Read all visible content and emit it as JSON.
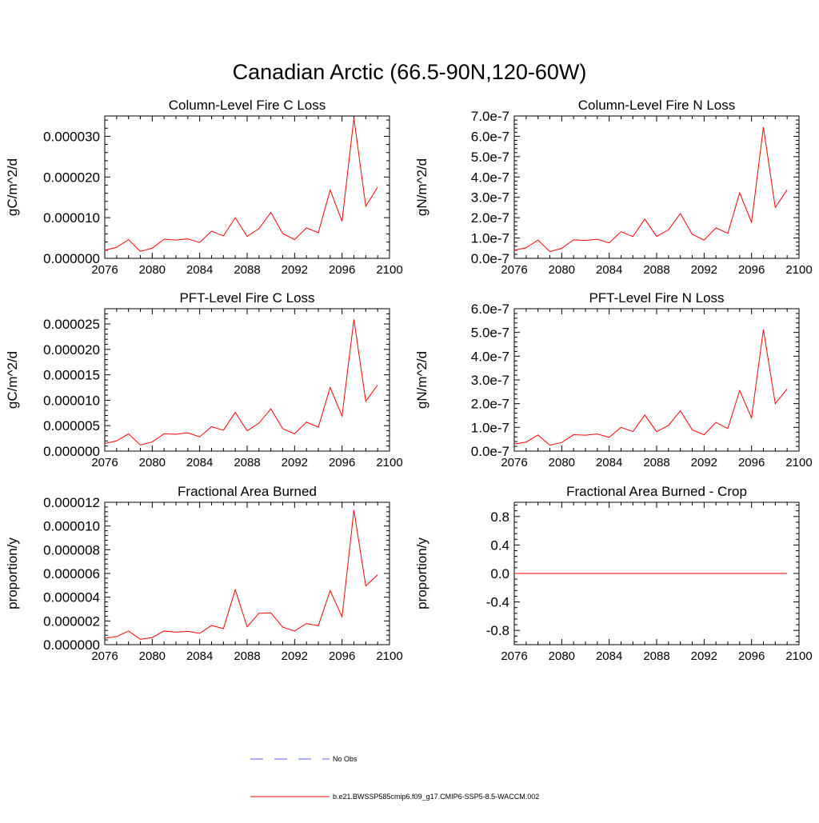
{
  "page_title": "Canadian Arctic (66.5-90N,120-60W)",
  "colors": {
    "model_line": "#ff0000",
    "obs_line": "#5a5aff",
    "axis": "#000000"
  },
  "legend": {
    "obs_label": "No Obs",
    "model_label": "b.e21.BWSSP585cmip6.f09_g17.CMIP6-SSP5-8.5-WACCM.002"
  },
  "chart_data": [
    {
      "type": "line",
      "title": "Column-Level Fire C Loss",
      "ylabel": "gC/m^2/d",
      "xlim": [
        2076,
        2100
      ],
      "ylim": [
        0,
        3.5e-05
      ],
      "xticks": [
        2076,
        2080,
        2084,
        2088,
        2092,
        2096,
        2100
      ],
      "yticks": [
        0,
        1e-05,
        2e-05,
        3e-05
      ],
      "ytick_labels": [
        "0.000000",
        "0.000010",
        "0.000020",
        "0.000030"
      ],
      "x": [
        2076,
        2077,
        2078,
        2079,
        2080,
        2081,
        2082,
        2083,
        2084,
        2085,
        2086,
        2087,
        2088,
        2089,
        2090,
        2091,
        2092,
        2093,
        2094,
        2095,
        2096,
        2097,
        2098,
        2099
      ],
      "series": [
        {
          "name": "b.e21.BWSSP585cmip6.f09_g17.CMIP6-SSP5-8.5-WACCM.002",
          "values": [
            2e-06,
            2.7e-06,
            4.6e-06,
            1.7e-06,
            2.5e-06,
            4.7e-06,
            4.5e-06,
            4.8e-06,
            3.9e-06,
            6.7e-06,
            5.5e-06,
            1e-05,
            5.4e-06,
            7.3e-06,
            1.13e-05,
            6.1e-06,
            4.6e-06,
            7.5e-06,
            6.3e-06,
            1.68e-05,
            9.1e-06,
            3.45e-05,
            1.28e-05,
            1.75e-05
          ]
        }
      ]
    },
    {
      "type": "line",
      "title": "Column-Level Fire N Loss",
      "ylabel": "gN/m^2/d",
      "xlim": [
        2076,
        2100
      ],
      "ylim": [
        0,
        7e-07
      ],
      "xticks": [
        2076,
        2080,
        2084,
        2088,
        2092,
        2096,
        2100
      ],
      "yticks": [
        0,
        1e-07,
        2e-07,
        3e-07,
        4e-07,
        5e-07,
        6e-07,
        7e-07
      ],
      "ytick_labels": [
        "0.0e-7",
        "1.0e-7",
        "2.0e-7",
        "3.0e-7",
        "4.0e-7",
        "5.0e-7",
        "6.0e-7",
        "7.0e-7"
      ],
      "x": [
        2076,
        2077,
        2078,
        2079,
        2080,
        2081,
        2082,
        2083,
        2084,
        2085,
        2086,
        2087,
        2088,
        2089,
        2090,
        2091,
        2092,
        2093,
        2094,
        2095,
        2096,
        2097,
        2098,
        2099
      ],
      "series": [
        {
          "name": "b.e21.BWSSP585cmip6.f09_g17.CMIP6-SSP5-8.5-WACCM.002",
          "values": [
            4e-08,
            5.2e-08,
            9e-08,
            3.3e-08,
            4.9e-08,
            9.1e-08,
            8.8e-08,
            9.4e-08,
            7.6e-08,
            1.31e-07,
            1.07e-07,
            1.93e-07,
            1.08e-07,
            1.4e-07,
            2.2e-07,
            1.18e-07,
            9e-08,
            1.5e-07,
            1.23e-07,
            3.22e-07,
            1.77e-07,
            6.45e-07,
            2.5e-07,
            3.37e-07
          ]
        }
      ]
    },
    {
      "type": "line",
      "title": "PFT-Level Fire C Loss",
      "ylabel": "gC/m^2/d",
      "xlim": [
        2076,
        2100
      ],
      "ylim": [
        0,
        2.8e-05
      ],
      "xticks": [
        2076,
        2080,
        2084,
        2088,
        2092,
        2096,
        2100
      ],
      "yticks": [
        0,
        5e-06,
        1e-05,
        1.5e-05,
        2e-05,
        2.5e-05
      ],
      "ytick_labels": [
        "0.000000",
        "0.000005",
        "0.000010",
        "0.000015",
        "0.000020",
        "0.000025"
      ],
      "x": [
        2076,
        2077,
        2078,
        2079,
        2080,
        2081,
        2082,
        2083,
        2084,
        2085,
        2086,
        2087,
        2088,
        2089,
        2090,
        2091,
        2092,
        2093,
        2094,
        2095,
        2096,
        2097,
        2098,
        2099
      ],
      "series": [
        {
          "name": "b.e21.BWSSP585cmip6.f09_g17.CMIP6-SSP5-8.5-WACCM.002",
          "values": [
            1.5e-06,
            2e-06,
            3.4e-06,
            1.2e-06,
            1.8e-06,
            3.4e-06,
            3.3e-06,
            3.6e-06,
            2.8e-06,
            4.8e-06,
            4.1e-06,
            7.6e-06,
            4e-06,
            5.5e-06,
            8.3e-06,
            4.4e-06,
            3.4e-06,
            5.7e-06,
            4.7e-06,
            1.25e-05,
            6.9e-06,
            2.59e-05,
            9.8e-06,
            1.3e-05
          ]
        }
      ]
    },
    {
      "type": "line",
      "title": "PFT-Level Fire N Loss",
      "ylabel": "gN/m^2/d",
      "xlim": [
        2076,
        2100
      ],
      "ylim": [
        0,
        6e-07
      ],
      "xticks": [
        2076,
        2080,
        2084,
        2088,
        2092,
        2096,
        2100
      ],
      "yticks": [
        0,
        1e-07,
        2e-07,
        3e-07,
        4e-07,
        5e-07,
        6e-07
      ],
      "ytick_labels": [
        "0.0e-7",
        "1.0e-7",
        "2.0e-7",
        "3.0e-7",
        "4.0e-7",
        "5.0e-7",
        "6.0e-7"
      ],
      "x": [
        2076,
        2077,
        2078,
        2079,
        2080,
        2081,
        2082,
        2083,
        2084,
        2085,
        2086,
        2087,
        2088,
        2089,
        2090,
        2091,
        2092,
        2093,
        2094,
        2095,
        2096,
        2097,
        2098,
        2099
      ],
      "series": [
        {
          "name": "b.e21.BWSSP585cmip6.f09_g17.CMIP6-SSP5-8.5-WACCM.002",
          "values": [
            3e-08,
            3.8e-08,
            6.8e-08,
            2.5e-08,
            3.6e-08,
            6.9e-08,
            6.7e-08,
            7.2e-08,
            5.8e-08,
            1e-07,
            8.2e-08,
            1.52e-07,
            8.2e-08,
            1.08e-07,
            1.7e-07,
            9e-08,
            6.9e-08,
            1.21e-07,
            9.5e-08,
            2.55e-07,
            1.4e-07,
            5.12e-07,
            2e-07,
            2.62e-07
          ]
        }
      ]
    },
    {
      "type": "line",
      "title": "Fractional Area Burned",
      "ylabel": "proportion/y",
      "xlim": [
        2076,
        2100
      ],
      "ylim": [
        0,
        1.2e-05
      ],
      "xticks": [
        2076,
        2080,
        2084,
        2088,
        2092,
        2096,
        2100
      ],
      "yticks": [
        0,
        2e-06,
        4e-06,
        6e-06,
        8e-06,
        1e-05,
        1.2e-05
      ],
      "ytick_labels": [
        "0.000000",
        "0.000002",
        "0.000004",
        "0.000006",
        "0.000008",
        "0.000010",
        "0.000012"
      ],
      "x": [
        2076,
        2077,
        2078,
        2079,
        2080,
        2081,
        2082,
        2083,
        2084,
        2085,
        2086,
        2087,
        2088,
        2089,
        2090,
        2091,
        2092,
        2093,
        2094,
        2095,
        2096,
        2097,
        2098,
        2099
      ],
      "series": [
        {
          "name": "b.e21.BWSSP585cmip6.f09_g17.CMIP6-SSP5-8.5-WACCM.002",
          "values": [
            5.5e-07,
            6.8e-07,
            1.15e-06,
            4.5e-07,
            6e-07,
            1.15e-06,
            1.05e-06,
            1.12e-06,
            9.5e-07,
            1.62e-06,
            1.35e-06,
            4.63e-06,
            1.5e-06,
            2.65e-06,
            2.68e-06,
            1.48e-06,
            1.15e-06,
            1.78e-06,
            1.6e-06,
            4.55e-06,
            2.35e-06,
            1.135e-05,
            4.95e-06,
            5.88e-06
          ]
        }
      ]
    },
    {
      "type": "line",
      "title": "Fractional Area Burned - Crop",
      "ylabel": "proportion/y",
      "xlim": [
        2076,
        2100
      ],
      "ylim": [
        -1.0,
        1.0
      ],
      "xticks": [
        2076,
        2080,
        2084,
        2088,
        2092,
        2096,
        2100
      ],
      "yticks": [
        -0.8,
        -0.4,
        0.0,
        0.4,
        0.8
      ],
      "ytick_labels": [
        "-0.8",
        "-0.4",
        "0.0",
        "0.4",
        "0.8"
      ],
      "x": [
        2076,
        2077,
        2078,
        2079,
        2080,
        2081,
        2082,
        2083,
        2084,
        2085,
        2086,
        2087,
        2088,
        2089,
        2090,
        2091,
        2092,
        2093,
        2094,
        2095,
        2096,
        2097,
        2098,
        2099
      ],
      "series": [
        {
          "name": "b.e21.BWSSP585cmip6.f09_g17.CMIP6-SSP5-8.5-WACCM.002",
          "values": [
            0,
            0,
            0,
            0,
            0,
            0,
            0,
            0,
            0,
            0,
            0,
            0,
            0,
            0,
            0,
            0,
            0,
            0,
            0,
            0,
            0,
            0,
            0,
            0
          ]
        }
      ]
    }
  ]
}
